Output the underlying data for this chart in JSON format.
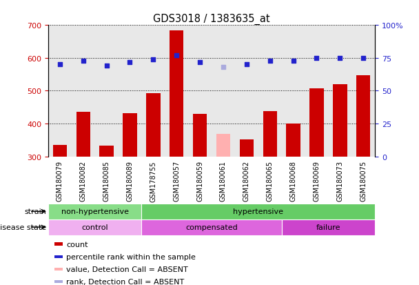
{
  "title": "GDS3018 / 1383635_at",
  "samples": [
    "GSM180079",
    "GSM180082",
    "GSM180085",
    "GSM180089",
    "GSM178755",
    "GSM180057",
    "GSM180059",
    "GSM180061",
    "GSM180062",
    "GSM180065",
    "GSM180068",
    "GSM180069",
    "GSM180073",
    "GSM180075"
  ],
  "counts": [
    335,
    435,
    333,
    432,
    493,
    683,
    430,
    368,
    352,
    437,
    400,
    507,
    520,
    548
  ],
  "absent_flags": [
    false,
    false,
    false,
    false,
    false,
    false,
    false,
    true,
    false,
    false,
    false,
    false,
    false,
    false
  ],
  "percentiles": [
    70,
    73,
    69,
    72,
    74,
    77,
    72,
    68,
    70,
    73,
    73,
    75,
    75,
    75
  ],
  "absent_rank_flags": [
    false,
    false,
    false,
    false,
    false,
    false,
    false,
    true,
    false,
    false,
    false,
    false,
    false,
    false
  ],
  "ylim_left": [
    300,
    700
  ],
  "ylim_right": [
    0,
    100
  ],
  "yticks_left": [
    300,
    400,
    500,
    600,
    700
  ],
  "yticks_right": [
    0,
    25,
    50,
    75,
    100
  ],
  "ytick_labels_right": [
    "0",
    "25",
    "50",
    "75",
    "100%"
  ],
  "bar_color_normal": "#cc0000",
  "bar_color_absent": "#ffb0b0",
  "dot_color_normal": "#2222cc",
  "dot_color_absent": "#aaaadd",
  "strain_groups": [
    {
      "label": "non-hypertensive",
      "start": 0,
      "end": 4,
      "color": "#88dd88"
    },
    {
      "label": "hypertensive",
      "start": 4,
      "end": 14,
      "color": "#66cc66"
    }
  ],
  "disease_groups": [
    {
      "label": "control",
      "start": 0,
      "end": 4,
      "color": "#f0b0f0"
    },
    {
      "label": "compensated",
      "start": 4,
      "end": 10,
      "color": "#dd66dd"
    },
    {
      "label": "failure",
      "start": 10,
      "end": 14,
      "color": "#cc44cc"
    }
  ],
  "legend_items": [
    {
      "label": "count",
      "color": "#cc0000"
    },
    {
      "label": "percentile rank within the sample",
      "color": "#2222cc"
    },
    {
      "label": "value, Detection Call = ABSENT",
      "color": "#ffb0b0"
    },
    {
      "label": "rank, Detection Call = ABSENT",
      "color": "#aaaadd"
    }
  ],
  "xticklabel_bg": "#d8d8d8",
  "plot_bg_color": "#e8e8e8",
  "background_color": "#ffffff"
}
